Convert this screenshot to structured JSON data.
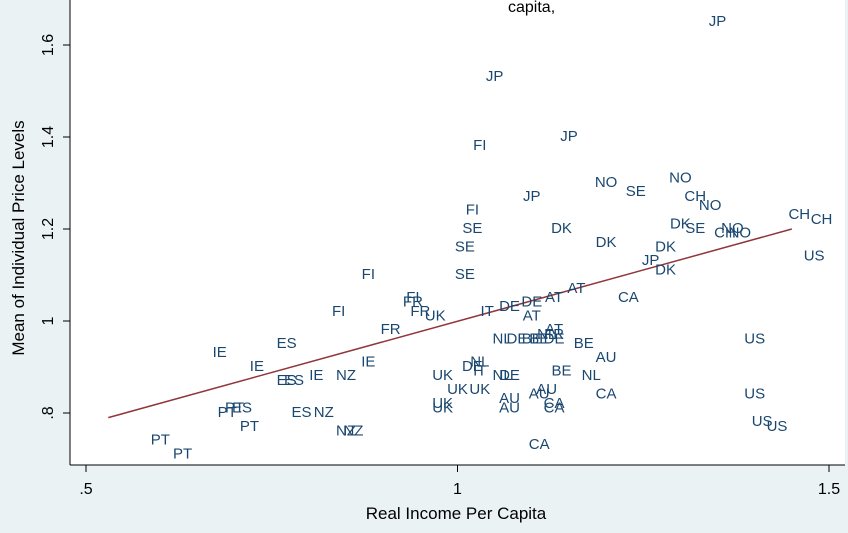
{
  "chart_data": {
    "type": "scatter",
    "title": "",
    "title_fragment": "capita,",
    "xlabel": "Real Income Per Capita",
    "ylabel": "Mean of Individual Price Levels",
    "xlim": [
      0.45,
      1.5
    ],
    "ylim": [
      0.68,
      1.68
    ],
    "x_ticks": [
      0.5,
      1,
      1.5
    ],
    "x_tick_labels": [
      ".5",
      "1",
      "1.5"
    ],
    "y_ticks": [
      0.8,
      1.0,
      1.2,
      1.4,
      1.6
    ],
    "y_tick_labels": [
      ".8",
      "1",
      "1.2",
      "1.4",
      "1.6"
    ],
    "grid": false,
    "marker_color": "#1a476f",
    "fit_line_color": "#90353b",
    "fit_line": {
      "x": [
        0.53,
        1.45
      ],
      "y": [
        0.79,
        1.2
      ]
    },
    "points": [
      {
        "label": "JP",
        "x": 1.35,
        "y": 1.65
      },
      {
        "label": "JP",
        "x": 1.05,
        "y": 1.53
      },
      {
        "label": "JP",
        "x": 1.15,
        "y": 1.4
      },
      {
        "label": "JP",
        "x": 1.1,
        "y": 1.27
      },
      {
        "label": "JP",
        "x": 1.26,
        "y": 1.13
      },
      {
        "label": "FI",
        "x": 1.03,
        "y": 1.38
      },
      {
        "label": "FI",
        "x": 1.02,
        "y": 1.24
      },
      {
        "label": "FI",
        "x": 0.88,
        "y": 1.1
      },
      {
        "label": "FI",
        "x": 0.94,
        "y": 1.05
      },
      {
        "label": "FI",
        "x": 0.84,
        "y": 1.02
      },
      {
        "label": "NO",
        "x": 1.2,
        "y": 1.3
      },
      {
        "label": "NO",
        "x": 1.3,
        "y": 1.31
      },
      {
        "label": "NO",
        "x": 1.34,
        "y": 1.25
      },
      {
        "label": "NO",
        "x": 1.38,
        "y": 1.19
      },
      {
        "label": "NO",
        "x": 1.37,
        "y": 1.2
      },
      {
        "label": "SE",
        "x": 1.24,
        "y": 1.28
      },
      {
        "label": "SE",
        "x": 1.02,
        "y": 1.2
      },
      {
        "label": "SE",
        "x": 1.01,
        "y": 1.16
      },
      {
        "label": "SE",
        "x": 1.01,
        "y": 1.1
      },
      {
        "label": "SE",
        "x": 1.32,
        "y": 1.2
      },
      {
        "label": "CH",
        "x": 1.32,
        "y": 1.27
      },
      {
        "label": "CH",
        "x": 1.46,
        "y": 1.23
      },
      {
        "label": "CH",
        "x": 1.49,
        "y": 1.22
      },
      {
        "label": "CH",
        "x": 1.36,
        "y": 1.19
      },
      {
        "label": "DK",
        "x": 1.14,
        "y": 1.2
      },
      {
        "label": "DK",
        "x": 1.3,
        "y": 1.21
      },
      {
        "label": "DK",
        "x": 1.2,
        "y": 1.17
      },
      {
        "label": "DK",
        "x": 1.28,
        "y": 1.16
      },
      {
        "label": "DK",
        "x": 1.28,
        "y": 1.11
      },
      {
        "label": "AT",
        "x": 1.16,
        "y": 1.07
      },
      {
        "label": "AT",
        "x": 1.13,
        "y": 1.05
      },
      {
        "label": "AT",
        "x": 1.1,
        "y": 1.01
      },
      {
        "label": "AT",
        "x": 1.13,
        "y": 0.98
      },
      {
        "label": "FR",
        "x": 0.94,
        "y": 1.04
      },
      {
        "label": "FR",
        "x": 0.95,
        "y": 1.02
      },
      {
        "label": "FR",
        "x": 0.91,
        "y": 0.98
      },
      {
        "label": "FR",
        "x": 1.13,
        "y": 0.97
      },
      {
        "label": "UK",
        "x": 0.97,
        "y": 1.01
      },
      {
        "label": "UK",
        "x": 0.98,
        "y": 0.88
      },
      {
        "label": "UK",
        "x": 1.0,
        "y": 0.85
      },
      {
        "label": "UK",
        "x": 0.98,
        "y": 0.81
      },
      {
        "label": "UK",
        "x": 1.03,
        "y": 0.85
      },
      {
        "label": "UK",
        "x": 0.98,
        "y": 0.82
      },
      {
        "label": "IT",
        "x": 1.04,
        "y": 1.02
      },
      {
        "label": "IT",
        "x": 1.03,
        "y": 0.89
      },
      {
        "label": "DE",
        "x": 1.07,
        "y": 1.03
      },
      {
        "label": "DE",
        "x": 1.1,
        "y": 1.04
      },
      {
        "label": "DE",
        "x": 1.08,
        "y": 0.96
      },
      {
        "label": "DE",
        "x": 1.02,
        "y": 0.9
      },
      {
        "label": "DE",
        "x": 1.13,
        "y": 0.96
      },
      {
        "label": "DE",
        "x": 1.07,
        "y": 0.88
      },
      {
        "label": "BE",
        "x": 1.1,
        "y": 0.96
      },
      {
        "label": "BE",
        "x": 1.11,
        "y": 0.96
      },
      {
        "label": "BE",
        "x": 1.17,
        "y": 0.95
      },
      {
        "label": "BE",
        "x": 1.14,
        "y": 0.89
      },
      {
        "label": "NL",
        "x": 1.06,
        "y": 0.96
      },
      {
        "label": "NL",
        "x": 1.12,
        "y": 0.97
      },
      {
        "label": "NL",
        "x": 1.06,
        "y": 0.88
      },
      {
        "label": "NL",
        "x": 1.03,
        "y": 0.91
      },
      {
        "label": "NL",
        "x": 1.18,
        "y": 0.88
      },
      {
        "label": "AU",
        "x": 1.2,
        "y": 0.92
      },
      {
        "label": "AU",
        "x": 1.12,
        "y": 0.85
      },
      {
        "label": "AU",
        "x": 1.11,
        "y": 0.84
      },
      {
        "label": "AU",
        "x": 1.07,
        "y": 0.83
      },
      {
        "label": "AU",
        "x": 1.07,
        "y": 0.81
      },
      {
        "label": "CA",
        "x": 1.23,
        "y": 1.05
      },
      {
        "label": "CA",
        "x": 1.2,
        "y": 0.84
      },
      {
        "label": "CA",
        "x": 1.13,
        "y": 0.82
      },
      {
        "label": "CA",
        "x": 1.13,
        "y": 0.81
      },
      {
        "label": "CA",
        "x": 1.11,
        "y": 0.73
      },
      {
        "label": "US",
        "x": 1.48,
        "y": 1.14
      },
      {
        "label": "US",
        "x": 1.4,
        "y": 0.96
      },
      {
        "label": "US",
        "x": 1.4,
        "y": 0.84
      },
      {
        "label": "US",
        "x": 1.41,
        "y": 0.78
      },
      {
        "label": "US",
        "x": 1.43,
        "y": 0.77
      },
      {
        "label": "IE",
        "x": 0.68,
        "y": 0.93
      },
      {
        "label": "IE",
        "x": 0.73,
        "y": 0.9
      },
      {
        "label": "IE",
        "x": 0.81,
        "y": 0.88
      },
      {
        "label": "IE",
        "x": 0.88,
        "y": 0.91
      },
      {
        "label": "ES",
        "x": 0.77,
        "y": 0.95
      },
      {
        "label": "ES",
        "x": 0.77,
        "y": 0.87
      },
      {
        "label": "ES",
        "x": 0.78,
        "y": 0.87
      },
      {
        "label": "ES",
        "x": 0.71,
        "y": 0.81
      },
      {
        "label": "ES",
        "x": 0.79,
        "y": 0.8
      },
      {
        "label": "NZ",
        "x": 0.85,
        "y": 0.88
      },
      {
        "label": "NZ",
        "x": 0.82,
        "y": 0.8
      },
      {
        "label": "NZ",
        "x": 0.85,
        "y": 0.76
      },
      {
        "label": "NZ",
        "x": 0.86,
        "y": 0.76
      },
      {
        "label": "PT",
        "x": 0.69,
        "y": 0.8
      },
      {
        "label": "PT",
        "x": 0.7,
        "y": 0.81
      },
      {
        "label": "PT",
        "x": 0.72,
        "y": 0.77
      },
      {
        "label": "PT",
        "x": 0.6,
        "y": 0.74
      },
      {
        "label": "PT",
        "x": 0.63,
        "y": 0.71
      }
    ]
  }
}
